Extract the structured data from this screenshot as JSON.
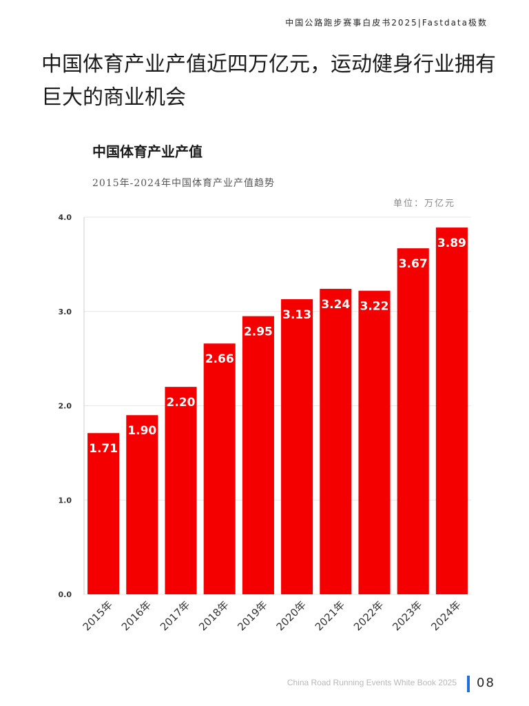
{
  "header": {
    "text": "中国公路跑步赛事白皮书2025|Fastdata极数"
  },
  "page_title": "中国体育产业产值近四万亿元，运动健身行业拥有巨大的商业机会",
  "footer": {
    "text": "China Road Running Events White Book 2025",
    "page_number": "08",
    "accent_color": "#1e6fd9"
  },
  "chart_data": {
    "type": "bar",
    "title": "中国体育产业产值",
    "subtitle": "2015年-2024年中国体育产业产值趋势",
    "unit": "单位：万亿元",
    "categories": [
      "2015年",
      "2016年",
      "2017年",
      "2018年",
      "2019年",
      "2020年",
      "2021年",
      "2022年",
      "2023年",
      "2024年"
    ],
    "values": [
      1.71,
      1.9,
      2.2,
      2.66,
      2.95,
      3.13,
      3.24,
      3.22,
      3.67,
      3.89
    ],
    "value_labels": [
      "1.71",
      "1.90",
      "2.20",
      "2.66",
      "2.95",
      "3.13",
      "3.24",
      "3.22",
      "3.67",
      "3.89"
    ],
    "ylim": [
      0,
      4.0
    ],
    "yticks": [
      "0.0",
      "1.0",
      "2.0",
      "3.0",
      "4.0"
    ],
    "grid": true,
    "bar_color": "#f40000"
  }
}
